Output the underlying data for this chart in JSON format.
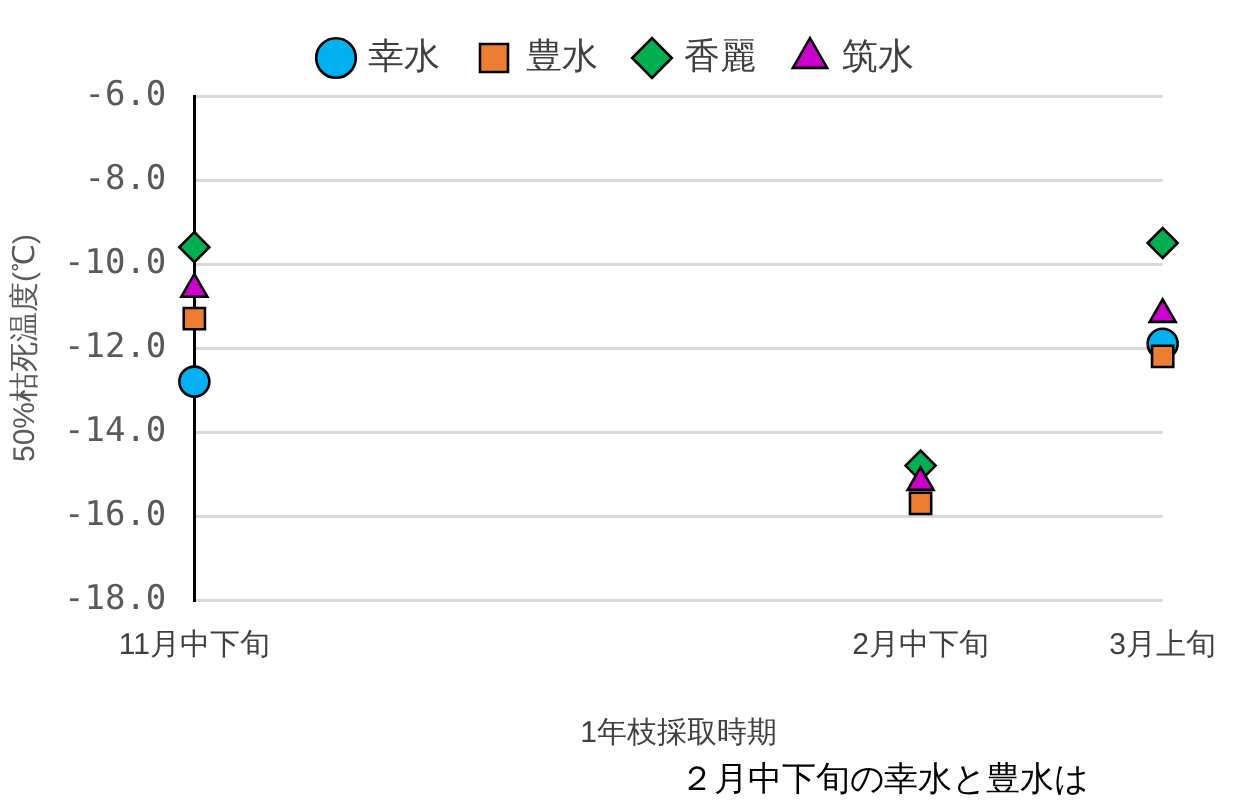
{
  "chart_data": {
    "type": "scatter",
    "xlabel": "1年枝採取時期",
    "ylabel": "50%枯死温度(℃)",
    "categories": [
      "11月中下旬",
      null,
      null,
      "2月中下旬",
      "3月上旬"
    ],
    "series": [
      {
        "name": "幸水",
        "color": "#00b0f0",
        "marker": "circle",
        "values": [
          -12.8,
          null,
          null,
          null,
          -11.9
        ]
      },
      {
        "name": "豊水",
        "color": "#ed7d31",
        "marker": "square",
        "values": [
          -11.3,
          null,
          null,
          -15.7,
          -12.2
        ]
      },
      {
        "name": "香麗",
        "color": "#00b050",
        "marker": "diamond",
        "values": [
          -9.6,
          null,
          null,
          -14.8,
          -9.5
        ]
      },
      {
        "name": "筑水",
        "color": "#cc00cc",
        "marker": "triangle",
        "values": [
          -10.6,
          null,
          null,
          -15.2,
          -11.2
        ]
      }
    ],
    "ylim": [
      -18,
      -6
    ],
    "yticks": [
      {
        "value": -18,
        "label": "-18.0"
      },
      {
        "value": -16,
        "label": "-16.0"
      },
      {
        "value": -14,
        "label": "-14.0"
      },
      {
        "value": -12,
        "label": "-12.0"
      },
      {
        "value": -10,
        "label": "-10.0"
      },
      {
        "value": -8,
        "label": "-8.0"
      },
      {
        "value": -6,
        "label": "-6.0"
      }
    ],
    "grid": "y",
    "legend": "top",
    "annotations": [
      "２月中下旬の幸水と豊水は"
    ]
  }
}
